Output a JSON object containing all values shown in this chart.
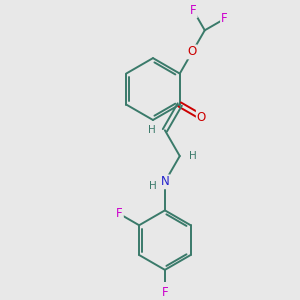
{
  "background_color": "#e8e8e8",
  "bond_color": "#3a7a6a",
  "atom_colors": {
    "F": "#cc00cc",
    "O": "#cc0000",
    "N": "#2222cc",
    "H": "#3a7a6a"
  },
  "figsize": [
    3.0,
    3.0
  ],
  "dpi": 100,
  "xlim": [
    -1.5,
    2.0
  ],
  "ylim": [
    -2.2,
    2.5
  ]
}
